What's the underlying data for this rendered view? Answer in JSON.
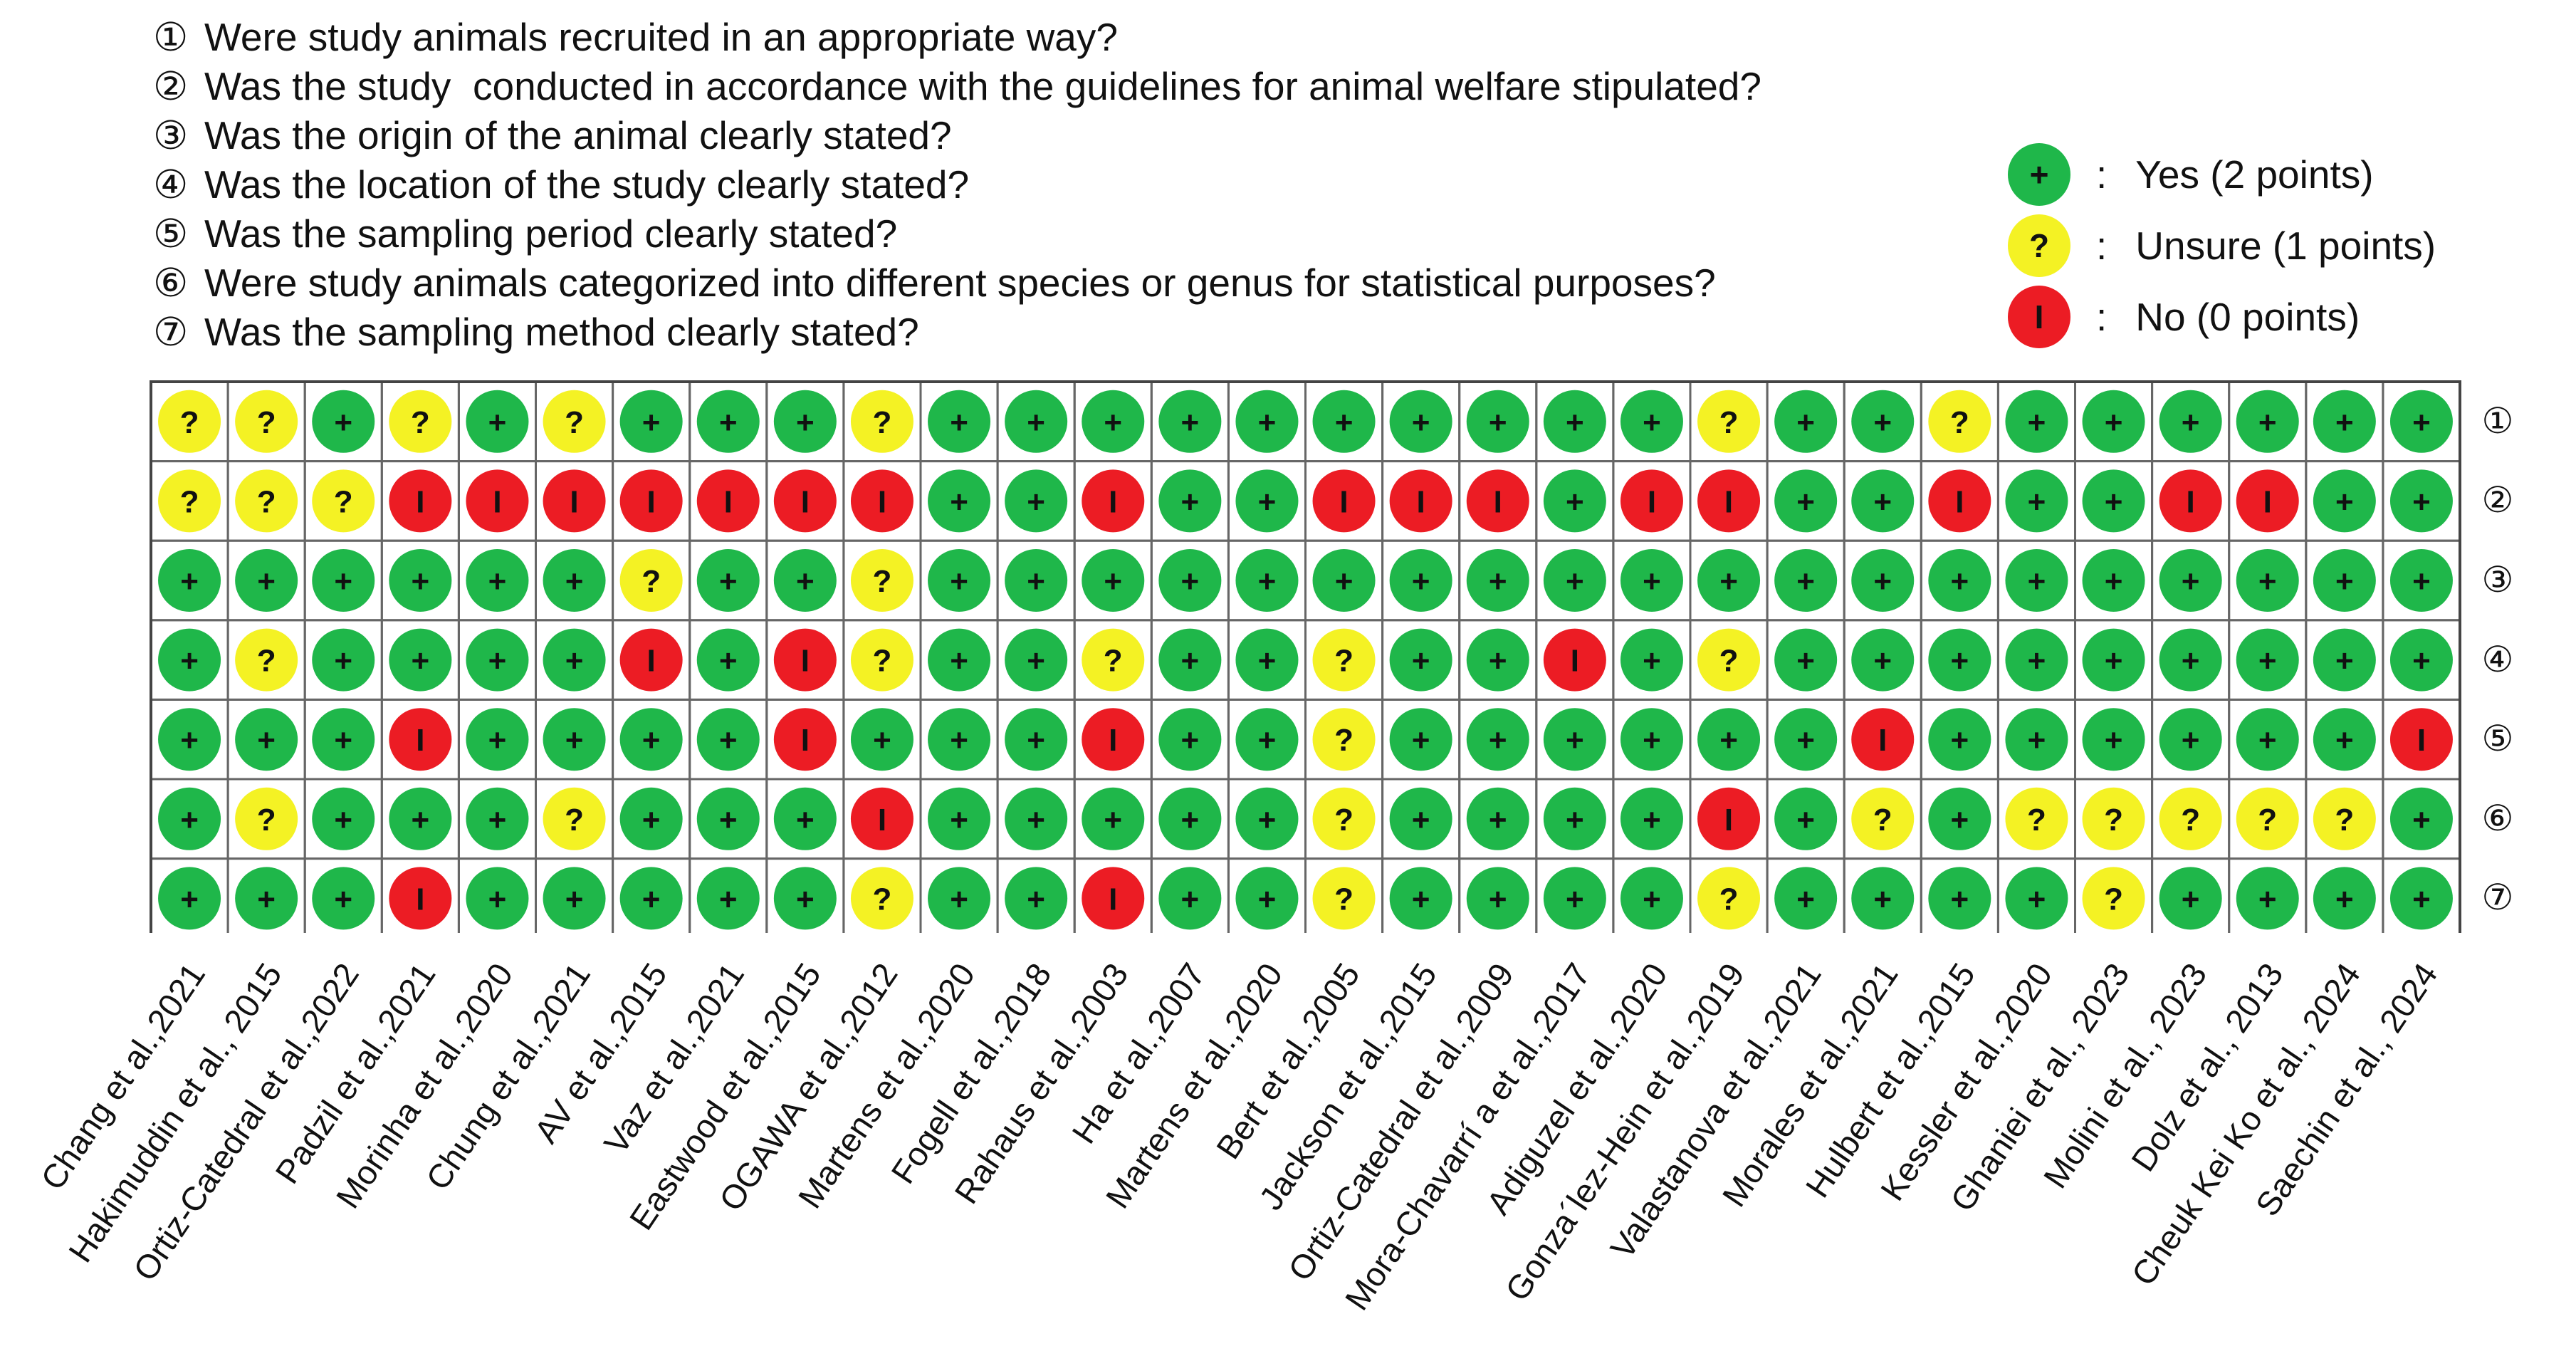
{
  "questions": [
    {
      "num": "①",
      "text": "Were study animals recruited in an appropriate way?"
    },
    {
      "num": "②",
      "text": "Was the study  conducted in accordance with the guidelines for animal welfare stipulated?"
    },
    {
      "num": "③",
      "text": "Was the origin of the animal clearly stated?"
    },
    {
      "num": "④",
      "text": "Was the location of the study clearly stated?"
    },
    {
      "num": "⑤",
      "text": "Was the sampling period clearly stated?"
    },
    {
      "num": "⑥",
      "text": "Were study animals categorized into different species or genus for statistical purposes?"
    },
    {
      "num": "⑦",
      "text": "Was the sampling method clearly stated?"
    }
  ],
  "legend": [
    {
      "key": "yes",
      "symbol": "+",
      "colon": ":",
      "label": "Yes (2 points)",
      "color": "#1fb74a"
    },
    {
      "key": "unsure",
      "symbol": "?",
      "colon": ":",
      "label": "Unsure (1 points)",
      "color": "#f4f224"
    },
    {
      "key": "no",
      "symbol": "I",
      "colon": ":",
      "label": "No (0 points)",
      "color": "#ec1c24"
    }
  ],
  "symbols": {
    "Y": "+",
    "U": "?",
    "N": "I"
  },
  "colors": {
    "Y": "#1fb74a",
    "U": "#f4f224",
    "N": "#ec1c24",
    "grid": "#666666"
  },
  "row_labels": [
    "①",
    "②",
    "③",
    "④",
    "⑤",
    "⑥",
    "⑦"
  ],
  "studies": [
    "Chang et al.,2021",
    "Hakimuddin et al., 2015",
    "Ortiz-Catedral  et al.,2022",
    "Padzil et al.,2021",
    "Morinha et al.,2020",
    "Chung et al.,2021",
    "AV et al.,2015",
    "Vaz et al.,2021",
    "Eastwood et al.,2015",
    "OGAWA et al.,2012",
    "Martens et al.,2020",
    "Fogell et al.,2018",
    "Rahaus et al.,2003",
    "Ha et al.,2007",
    "Martens et al.,2020",
    "Bert et al.,2005",
    "Jackson et al.,2015",
    "Ortiz-Catedral et al.,2009",
    "Mora-Chavarrí a et al.,2017",
    "Adiguzel et al.,2020",
    "Gonza´lez-Hein et al.,2019",
    "Valastanova et al.,2021",
    "Morales et al.,2021",
    "Hulbert et al.,2015",
    "Kessler et al.,2020",
    "Ghaniei et al., 2023",
    "Molini et al., 2023",
    "Dolz et al., 2013",
    "Cheuk Kei Ko et al., 2024",
    "Saechin et al., 2024"
  ],
  "matrix": [
    [
      "U",
      "U",
      "Y",
      "U",
      "Y",
      "U",
      "Y",
      "Y",
      "Y",
      "U",
      "Y",
      "Y",
      "Y",
      "Y",
      "Y",
      "Y",
      "Y",
      "Y",
      "Y",
      "Y",
      "U",
      "Y",
      "Y",
      "U",
      "Y",
      "Y",
      "Y",
      "Y",
      "Y",
      "Y"
    ],
    [
      "U",
      "U",
      "U",
      "N",
      "N",
      "N",
      "N",
      "N",
      "N",
      "N",
      "Y",
      "Y",
      "N",
      "Y",
      "Y",
      "N",
      "N",
      "N",
      "Y",
      "N",
      "N",
      "Y",
      "Y",
      "N",
      "Y",
      "Y",
      "N",
      "N",
      "Y",
      "Y"
    ],
    [
      "Y",
      "Y",
      "Y",
      "Y",
      "Y",
      "Y",
      "U",
      "Y",
      "Y",
      "U",
      "Y",
      "Y",
      "Y",
      "Y",
      "Y",
      "Y",
      "Y",
      "Y",
      "Y",
      "Y",
      "Y",
      "Y",
      "Y",
      "Y",
      "Y",
      "Y",
      "Y",
      "Y",
      "Y",
      "Y"
    ],
    [
      "Y",
      "U",
      "Y",
      "Y",
      "Y",
      "Y",
      "N",
      "Y",
      "N",
      "U",
      "Y",
      "Y",
      "U",
      "Y",
      "Y",
      "U",
      "Y",
      "Y",
      "N",
      "Y",
      "U",
      "Y",
      "Y",
      "Y",
      "Y",
      "Y",
      "Y",
      "Y",
      "Y",
      "Y"
    ],
    [
      "Y",
      "Y",
      "Y",
      "N",
      "Y",
      "Y",
      "Y",
      "Y",
      "N",
      "Y",
      "Y",
      "Y",
      "N",
      "Y",
      "Y",
      "U",
      "Y",
      "Y",
      "Y",
      "Y",
      "Y",
      "Y",
      "N",
      "Y",
      "Y",
      "Y",
      "Y",
      "Y",
      "Y",
      "N"
    ],
    [
      "Y",
      "U",
      "Y",
      "Y",
      "Y",
      "U",
      "Y",
      "Y",
      "Y",
      "N",
      "Y",
      "Y",
      "Y",
      "Y",
      "Y",
      "U",
      "Y",
      "Y",
      "Y",
      "Y",
      "N",
      "Y",
      "U",
      "Y",
      "U",
      "U",
      "U",
      "U",
      "U",
      "Y"
    ],
    [
      "Y",
      "Y",
      "Y",
      "N",
      "Y",
      "Y",
      "Y",
      "Y",
      "Y",
      "U",
      "Y",
      "Y",
      "N",
      "Y",
      "Y",
      "U",
      "Y",
      "Y",
      "Y",
      "Y",
      "U",
      "Y",
      "Y",
      "Y",
      "Y",
      "U",
      "Y",
      "Y",
      "Y",
      "Y"
    ]
  ]
}
